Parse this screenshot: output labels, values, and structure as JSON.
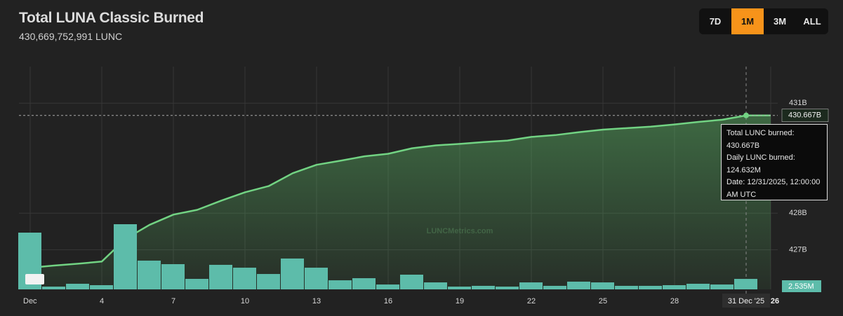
{
  "header": {
    "title": "Total LUNA Classic Burned",
    "subtitle": "430,669,752,991 LUNC"
  },
  "range_buttons": [
    {
      "label": "7D",
      "active": false
    },
    {
      "label": "1M",
      "active": true
    },
    {
      "label": "3M",
      "active": false
    },
    {
      "label": "ALL",
      "active": false
    }
  ],
  "watermark": "LUNCMetrics.com",
  "tooltip": {
    "lines": [
      "Total LUNC burned:",
      "430.667B",
      "Daily LUNC burned:",
      "124.632M",
      "Date: 12/31/2025, 12:00:00",
      "AM UTC"
    ]
  },
  "chart_data": {
    "type": "area",
    "categories": [
      "Dec",
      null,
      null,
      "4",
      null,
      null,
      "7",
      null,
      null,
      "10",
      null,
      null,
      "13",
      null,
      null,
      "16",
      null,
      null,
      "19",
      null,
      null,
      "22",
      null,
      null,
      "25",
      null,
      null,
      "28",
      null,
      null,
      "31 Dec '25"
    ],
    "x_extra_label": "26",
    "ylim": [
      425.92,
      432.0
    ],
    "yticks": [
      {
        "value": 427,
        "label": "427B"
      },
      {
        "value": 428,
        "label": "428B"
      },
      {
        "value": 431,
        "label": "431B"
      }
    ],
    "y2lim": [
      0,
      2650
    ],
    "y2_scale_label": "2.535M",
    "grid": true,
    "series": [
      {
        "kind": "area",
        "color": "#72d383",
        "values": [
          426.51,
          426.57,
          426.62,
          426.68,
          427.3,
          427.68,
          427.96,
          428.09,
          428.34,
          428.57,
          428.74,
          429.09,
          429.32,
          429.43,
          429.55,
          429.62,
          429.77,
          429.85,
          429.89,
          429.94,
          429.98,
          430.08,
          430.13,
          430.21,
          430.28,
          430.32,
          430.36,
          430.42,
          430.49,
          430.55,
          430.667
        ],
        "value_labels": [
          null,
          null,
          null,
          null,
          null,
          null,
          null,
          null,
          null,
          null,
          null,
          null,
          null,
          null,
          null,
          null,
          null,
          null,
          null,
          null,
          null,
          null,
          null,
          null,
          null,
          null,
          null,
          null,
          null,
          null,
          "430.667B"
        ]
      },
      {
        "kind": "bar",
        "axis": "y2",
        "color": "#5dbcaa",
        "values": [
          675,
          33,
          67,
          50,
          775,
          342,
          300,
          125,
          292,
          258,
          183,
          367,
          258,
          108,
          133,
          58,
          175,
          83,
          33,
          42,
          33,
          83,
          42,
          92,
          83,
          42,
          42,
          50,
          67,
          58,
          124.632
        ]
      }
    ]
  }
}
